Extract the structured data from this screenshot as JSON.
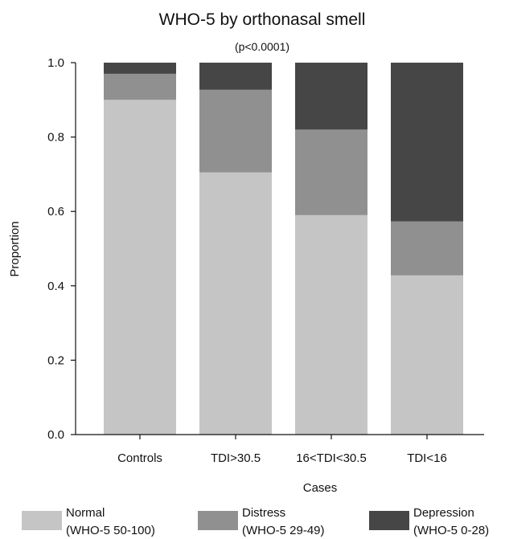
{
  "chart_data": {
    "type": "bar",
    "stacked": true,
    "title": "WHO-5 by orthonasal smell",
    "subtitle": "(p<0.0001)",
    "xlabel": "Cases",
    "ylabel": "Proportion",
    "ylim": [
      0,
      1
    ],
    "yticks": [
      "0.0",
      "0.2",
      "0.4",
      "0.6",
      "0.8",
      "1.0"
    ],
    "categories": [
      "Controls",
      "TDI>30.5",
      "16<TDI<30.5",
      "TDI<16"
    ],
    "series": [
      {
        "name": "Normal",
        "sub": "(WHO-5 50-100)",
        "color": "#c4c5c4",
        "values": [
          0.9,
          0.705,
          0.59,
          0.428
        ]
      },
      {
        "name": "Distress",
        "sub": "(WHO-5 29-49)",
        "color": "#8f908f",
        "values": [
          0.07,
          0.222,
          0.23,
          0.145
        ]
      },
      {
        "name": "Depression",
        "sub": "(WHO-5 0-28)",
        "color": "#464646",
        "values": [
          0.03,
          0.073,
          0.18,
          0.427
        ]
      }
    ],
    "legend_position": "bottom",
    "grid": false
  }
}
